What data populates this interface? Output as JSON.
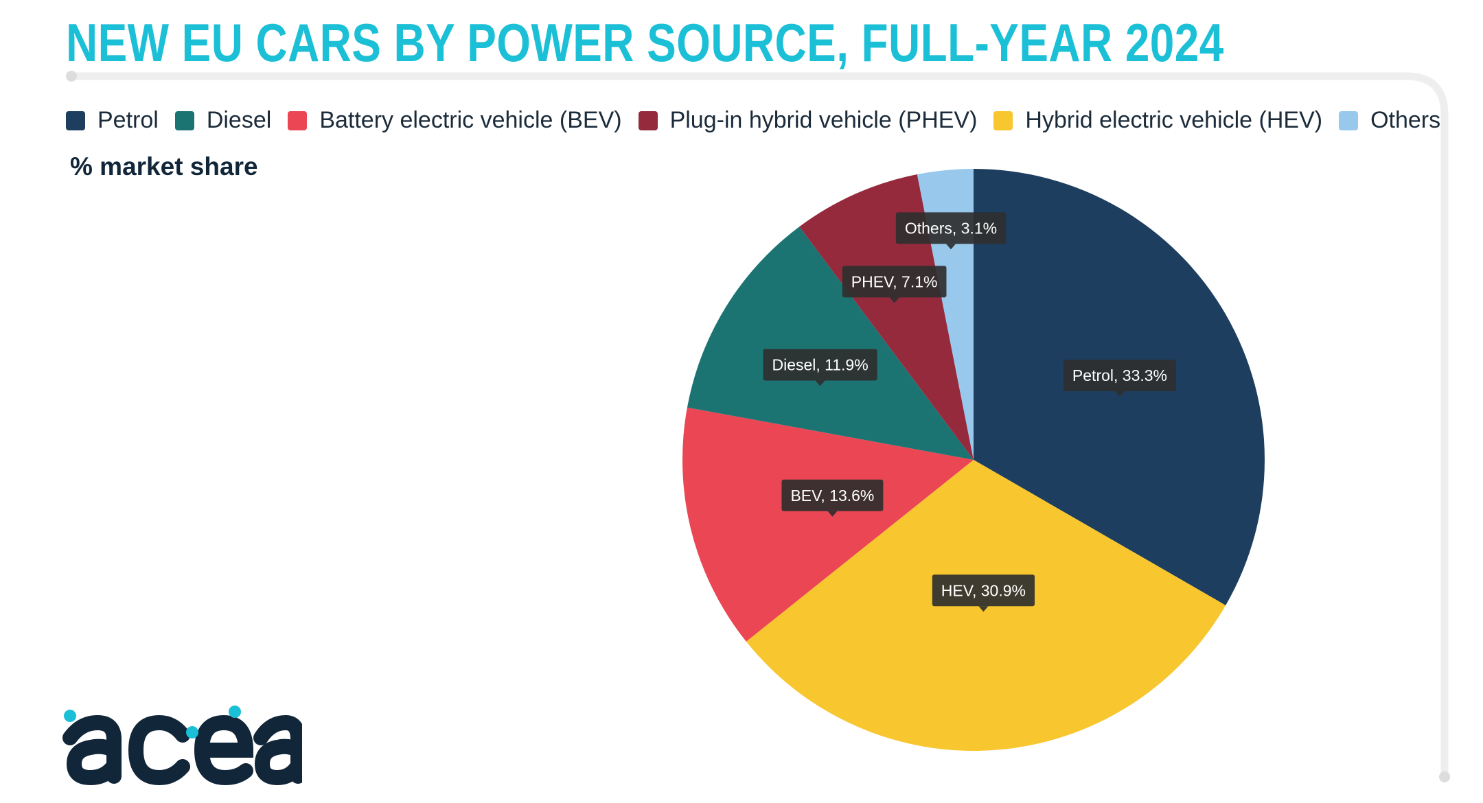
{
  "title": "NEW EU CARS BY POWER SOURCE, FULL-YEAR 2024",
  "unit_label": "% market share",
  "logo": {
    "text": "acea",
    "icon": "acea-logo"
  },
  "colors": {
    "title": "#1bbfd6",
    "frame": "#eeeeee",
    "tooltip_bg": "#2f2f2f",
    "tooltip_text": "#ffffff"
  },
  "legend": [
    {
      "label": "Petrol",
      "color": "#1d3e5e"
    },
    {
      "label": "Diesel",
      "color": "#1c7472"
    },
    {
      "label": "Battery electric vehicle (BEV)",
      "color": "#ea4654"
    },
    {
      "label": "Plug-in hybrid vehicle (PHEV)",
      "color": "#962a3d"
    },
    {
      "label": "Hybrid electric vehicle (HEV)",
      "color": "#f8c62f"
    },
    {
      "label": "Others",
      "color": "#98c9ec"
    }
  ],
  "chart_data": {
    "type": "pie",
    "categories": [
      "Petrol",
      "HEV",
      "BEV",
      "Diesel",
      "PHEV",
      "Others"
    ],
    "values": [
      33.3,
      30.9,
      13.6,
      11.9,
      7.1,
      3.1
    ],
    "data_labels": [
      "Petrol, 33.3%",
      "HEV, 30.9%",
      "BEV, 13.6%",
      "Diesel, 11.9%",
      "PHEV, 7.1%",
      "Others, 3.1%"
    ],
    "colors": [
      "#1d3e5e",
      "#f8c62f",
      "#ea4654",
      "#1c7472",
      "#962a3d",
      "#98c9ec"
    ],
    "start": "12 o'clock",
    "direction": "clockwise",
    "legend_position": "top-left"
  }
}
